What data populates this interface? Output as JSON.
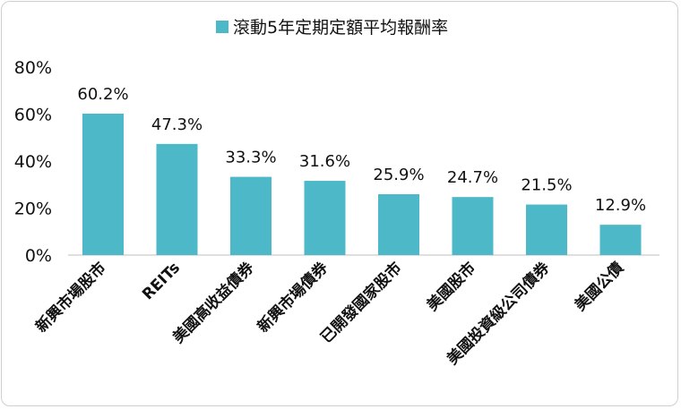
{
  "chart_data": {
    "type": "bar",
    "categories": [
      "新興市場股市",
      "REITs",
      "美國高收益債券",
      "新興市場債券",
      "已開發國家股市",
      "美國股市",
      "美國投資級公司債券",
      "美國公債"
    ],
    "series": [
      {
        "name": "滾動5年定期定額平均報酬率",
        "values": [
          60.2,
          47.3,
          33.3,
          31.6,
          25.9,
          24.7,
          21.5,
          12.9
        ]
      }
    ],
    "data_labels": [
      "60.2%",
      "47.3%",
      "33.3%",
      "31.6%",
      "25.9%",
      "24.7%",
      "21.5%",
      "12.9%"
    ],
    "y_ticks": [
      "0%",
      "20%",
      "40%",
      "60%",
      "80%"
    ],
    "ylim": [
      0,
      80
    ],
    "grid": false,
    "legend_position": "top-center",
    "bar_color": "#4db8c8"
  }
}
